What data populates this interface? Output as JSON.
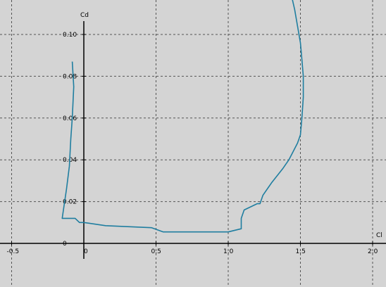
{
  "chart_data": {
    "type": "line",
    "title": "",
    "xlabel": "Cl",
    "ylabel": "Cd",
    "xlim": [
      -0.6,
      2.0
    ],
    "ylim": [
      -0.007,
      0.116
    ],
    "grid": true,
    "x_ticks": [
      -0.5,
      0,
      0.5,
      1.0,
      1.5,
      2.0
    ],
    "x_tick_labels": [
      "-0.5",
      "0",
      "0.5",
      "1.0",
      "1.5",
      "2.0"
    ],
    "y_ticks": [
      0,
      0.02,
      0.04,
      0.06,
      0.08,
      0.1
    ],
    "y_tick_labels": [
      "0",
      "0.02",
      "0.04",
      "0.06",
      "0.08",
      "0.10"
    ],
    "colors": {
      "background": "#d4d4d4",
      "series": "#1f7ea0",
      "grid": "#555555",
      "axis": "#000000"
    },
    "series": [
      {
        "name": "",
        "x": [
          -0.08,
          -0.07,
          -0.08,
          -0.09,
          -0.1,
          -0.12,
          -0.15,
          -0.1,
          -0.06,
          -0.03,
          0.0,
          0.15,
          0.47,
          0.55,
          0.7,
          0.9,
          1.0,
          1.06,
          1.09,
          1.09,
          1.11,
          1.2,
          1.22,
          1.24,
          1.3,
          1.38,
          1.42,
          1.45,
          1.48,
          1.5,
          1.51,
          1.52,
          1.52,
          1.51,
          1.5,
          1.48,
          1.46,
          1.44,
          1.43
        ],
        "y": [
          0.087,
          0.075,
          0.06,
          0.05,
          0.037,
          0.026,
          0.012,
          0.012,
          0.012,
          0.01,
          0.01,
          0.0085,
          0.0075,
          0.0055,
          0.0055,
          0.0055,
          0.0055,
          0.0065,
          0.007,
          0.012,
          0.016,
          0.019,
          0.019,
          0.023,
          0.029,
          0.036,
          0.04,
          0.044,
          0.048,
          0.052,
          0.06,
          0.07,
          0.08,
          0.088,
          0.096,
          0.104,
          0.112,
          0.118,
          0.122
        ]
      }
    ]
  }
}
